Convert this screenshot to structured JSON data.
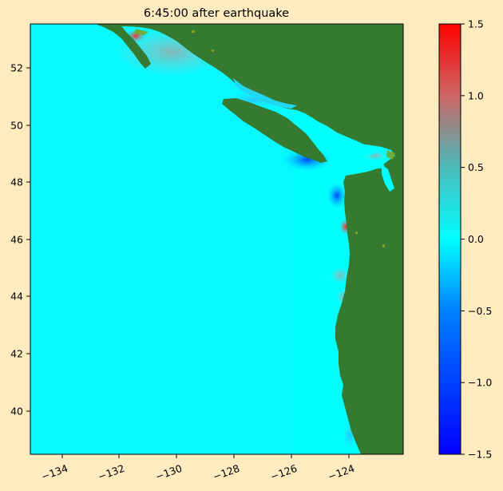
{
  "title": "6:45:00 after earthquake",
  "colors": {
    "figure_background": "#ffebc0",
    "land": "#357a30",
    "land_highlight": "#7fa020",
    "ocean_zero": "#00ffff",
    "ocean_positive_mid": "#999999",
    "ocean_positive_max": "#ff0000",
    "ocean_negative_mid": "#0080ff",
    "ocean_negative_max": "#0000ff"
  },
  "map": {
    "x_ticks": [
      "−134",
      "−132",
      "−130",
      "−128",
      "−126",
      "−124"
    ],
    "y_ticks": [
      "52",
      "50",
      "48",
      "46",
      "44",
      "42",
      "40"
    ]
  },
  "colorbar": {
    "min": -1.5,
    "max": 1.5,
    "ticks": [
      "1.5",
      "1.0",
      "0.5",
      "0.0",
      "−0.5",
      "−1.0",
      "−1.5"
    ]
  }
}
